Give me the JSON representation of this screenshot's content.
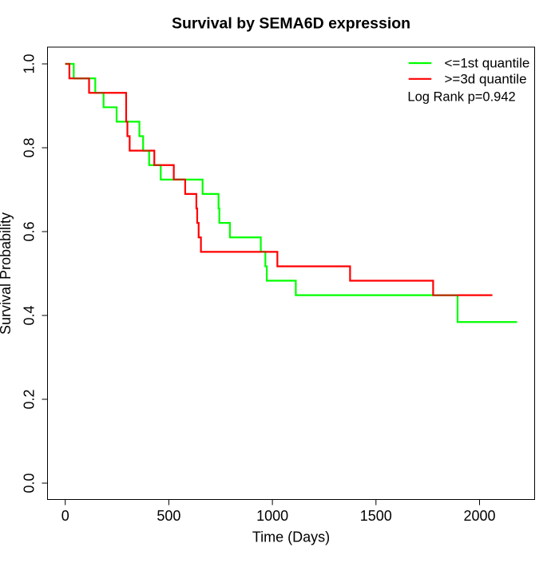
{
  "figure": {
    "background": "#FFFFFF",
    "axes_color": "#000000",
    "text_color": "#000000"
  },
  "chart_data": {
    "type": "line",
    "subtype": "kaplan-meier-step",
    "title": "Survival by SEMA6D expression",
    "xlabel": "Time (Days)",
    "ylabel": "Survival Probability",
    "x_ticks": [
      0,
      500,
      1000,
      1500,
      2000
    ],
    "x_tick_labels": [
      "0",
      "500",
      "1000",
      "1500",
      "2000"
    ],
    "y_ticks": [
      0.0,
      0.2,
      0.4,
      0.6,
      0.8,
      1.0
    ],
    "y_tick_labels": [
      "0.0",
      "0.2",
      "0.4",
      "0.6",
      "0.8",
      "1.0"
    ],
    "xlim": [
      -87,
      2267
    ],
    "ylim": [
      -0.04,
      1.04
    ],
    "grid": false,
    "legend_position": "topright",
    "annotation": "Log Rank p=0.942",
    "overlap_color": "#B03800",
    "series": [
      {
        "name": "<=1st quantile",
        "color": "#00FF00",
        "steps": [
          [
            0,
            1.0
          ],
          [
            41,
            0.9655
          ],
          [
            145,
            0.931
          ],
          [
            185,
            0.8966
          ],
          [
            248,
            0.8621
          ],
          [
            358,
            0.8276
          ],
          [
            376,
            0.7931
          ],
          [
            405,
            0.7586
          ],
          [
            461,
            0.7241
          ],
          [
            663,
            0.6897
          ],
          [
            740,
            0.6552
          ],
          [
            744,
            0.6207
          ],
          [
            795,
            0.5862
          ],
          [
            944,
            0.5517
          ],
          [
            966,
            0.5172
          ],
          [
            973,
            0.4828
          ],
          [
            1113,
            0.4483
          ],
          [
            1894,
            0.3843
          ]
        ],
        "end_time": 2181
      },
      {
        "name": ">=3d quantile",
        "color": "#FF0000",
        "steps": [
          [
            0,
            1.0
          ],
          [
            20,
            0.9655
          ],
          [
            115,
            0.931
          ],
          [
            294,
            0.8621
          ],
          [
            300,
            0.8276
          ],
          [
            311,
            0.7931
          ],
          [
            430,
            0.7586
          ],
          [
            524,
            0.7241
          ],
          [
            579,
            0.6897
          ],
          [
            633,
            0.6552
          ],
          [
            637,
            0.6207
          ],
          [
            644,
            0.5862
          ],
          [
            655,
            0.5517
          ],
          [
            1024,
            0.5172
          ],
          [
            1375,
            0.4828
          ],
          [
            1776,
            0.4483
          ]
        ],
        "end_time": 2062
      }
    ]
  }
}
